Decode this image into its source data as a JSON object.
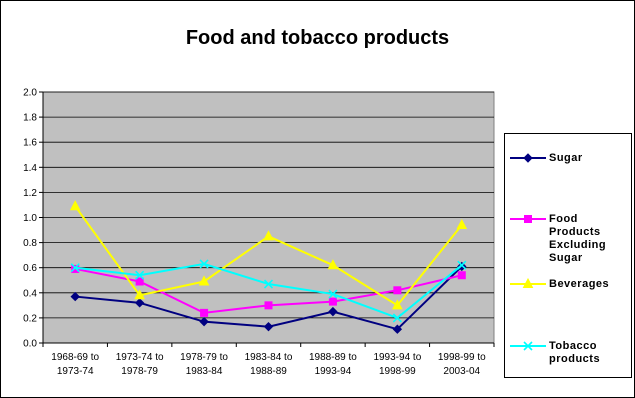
{
  "chart_data": {
    "type": "line",
    "title": "Food and tobacco products",
    "xlabel": "",
    "ylabel": "",
    "ylim": [
      0,
      2
    ],
    "yticks": [
      "0.0",
      "0.2",
      "0.4",
      "0.6",
      "0.8",
      "1.0",
      "1.2",
      "1.4",
      "1.6",
      "1.8",
      "2.0"
    ],
    "categories": [
      [
        "1968-69 to",
        "1973-74"
      ],
      [
        "1973-74 to",
        "1978-79"
      ],
      [
        "1978-79 to",
        "1983-84"
      ],
      [
        "1983-84 to",
        "1988-89"
      ],
      [
        "1988-89 to",
        "1993-94"
      ],
      [
        "1993-94 to",
        "1998-99"
      ],
      [
        "1998-99 to",
        "2003-04"
      ]
    ],
    "grid": true,
    "legend_position": "right",
    "plot_background": "#c0c0c0",
    "series": [
      {
        "name": "Sugar",
        "legend_lines": [
          "Sugar"
        ],
        "color": "#000080",
        "marker": "diamond",
        "values": [
          0.37,
          0.32,
          0.17,
          0.13,
          0.25,
          0.11,
          0.61
        ]
      },
      {
        "name": "Food Products Excluding Sugar",
        "legend_lines": [
          "Food Products",
          "Excluding",
          "Sugar"
        ],
        "color": "#ff00ff",
        "marker": "square",
        "values": [
          0.59,
          0.49,
          0.24,
          0.3,
          0.33,
          0.42,
          0.54
        ]
      },
      {
        "name": "Beverages",
        "legend_lines": [
          "Beverages"
        ],
        "color": "#ffff00",
        "marker": "triangle",
        "values": [
          1.09,
          0.38,
          0.49,
          0.85,
          0.62,
          0.3,
          0.94
        ]
      },
      {
        "name": "Tobacco products",
        "legend_lines": [
          "Tobacco",
          "products"
        ],
        "color": "#00ffff",
        "marker": "x",
        "values": [
          0.6,
          0.54,
          0.63,
          0.47,
          0.39,
          0.2,
          0.62
        ]
      }
    ]
  }
}
